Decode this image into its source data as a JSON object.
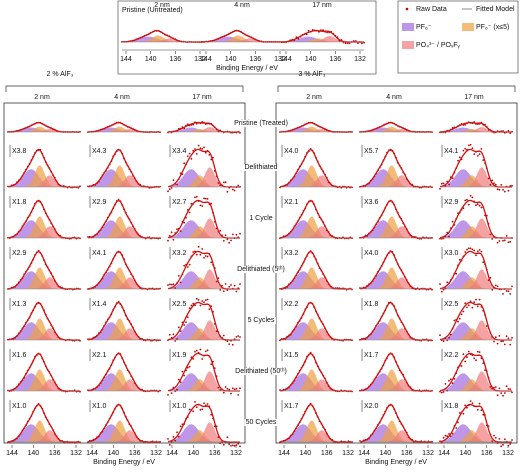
{
  "inset": {
    "label": "Pristine (Untreated)",
    "columns": [
      "2 nm",
      "4 nm",
      "17 nm"
    ],
    "xticks": [
      "144",
      "140",
      "136",
      "132"
    ],
    "xlabel": "Binding Energy / eV"
  },
  "legend": [
    "Raw Data",
    "Fitted Model",
    "PF₆⁻",
    "PF₆⁻ (x≤5)",
    "PO₄³⁻ / POₓFᵧ"
  ],
  "row_labels": [
    "Pristine (Treated)",
    "Delithiated",
    "1 Cycle",
    "Delithiated (5ᵗʰ)",
    "5 Cycles",
    "Delithiated (50ᵗʰ)",
    "50 Cycles"
  ],
  "groups": [
    {
      "title": "2 % AlF₃",
      "columns": [
        "2 nm",
        "4 nm",
        "17 nm"
      ],
      "xticks": [
        "144",
        "140",
        "136",
        "132"
      ],
      "xlabel": "Binding Energy / eV",
      "scales": [
        [
          "X3.8",
          "X4.3",
          "X3.4"
        ],
        [
          "X1.8",
          "X2.9",
          "X2.7"
        ],
        [
          "X2.9",
          "X4.1",
          "X3.2"
        ],
        [
          "X1.3",
          "X1.4",
          "X2.5"
        ],
        [
          "X1.6",
          "X2.1",
          "X1.9"
        ],
        [
          "X1.0",
          "X1.0",
          "X1.0"
        ]
      ]
    },
    {
      "title": "3 % AlF₃",
      "columns": [
        "2 nm",
        "4 nm",
        "17 nm"
      ],
      "xticks": [
        "144",
        "140",
        "136",
        "132"
      ],
      "xlabel": "Binding Energy / eV",
      "scales": [
        [
          "X4.0",
          "X5.7",
          "X4.1"
        ],
        [
          "X2.1",
          "X3.6",
          "X2.9"
        ],
        [
          "X3.2",
          "X4.0",
          "X3.0"
        ],
        [
          "X2.2",
          "X1.8",
          "X2.5"
        ],
        [
          "X1.5",
          "X1.7",
          "X2.2"
        ],
        [
          "X1.7",
          "X2.0",
          "X1.8"
        ]
      ]
    }
  ]
}
